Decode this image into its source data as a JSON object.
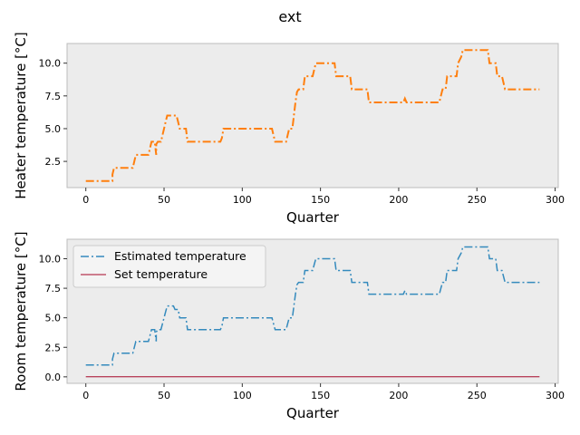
{
  "figure_title": "ext",
  "chart_data": [
    {
      "type": "line",
      "title": "",
      "xlabel": "Quarter",
      "ylabel": "Heater temperature [°C]",
      "xlim": [
        -12,
        302
      ],
      "ylim": [
        0.5,
        11.5
      ],
      "xticks": [
        0,
        50,
        100,
        150,
        200,
        250,
        300
      ],
      "xtick_labels": [
        "0",
        "50",
        "100",
        "150",
        "200",
        "250",
        "300"
      ],
      "yticks": [
        2.5,
        5.0,
        7.5,
        10.0
      ],
      "ytick_labels": [
        "2.5",
        "5.0",
        "7.5",
        "10.0"
      ],
      "grid": false,
      "background": "#ececec",
      "series": [
        {
          "name": "Heater temperature",
          "color": "#ff7f0e",
          "style": "dashdot",
          "points": [
            [
              0,
              1
            ],
            [
              17,
              1
            ],
            [
              17,
              1.5
            ],
            [
              18,
              2
            ],
            [
              30,
              2
            ],
            [
              31,
              2.5
            ],
            [
              32,
              3
            ],
            [
              40,
              3
            ],
            [
              41,
              3.5
            ],
            [
              42,
              4
            ],
            [
              44,
              4
            ],
            [
              45,
              3
            ],
            [
              45,
              3.8
            ],
            [
              46,
              4
            ],
            [
              48,
              4
            ],
            [
              49,
              4.5
            ],
            [
              50,
              5
            ],
            [
              51,
              5.5
            ],
            [
              52,
              6
            ],
            [
              58,
              6
            ],
            [
              59,
              5.5
            ],
            [
              60,
              5
            ],
            [
              64,
              5
            ],
            [
              65,
              4
            ],
            [
              86,
              4
            ],
            [
              87,
              4.3
            ],
            [
              88,
              5
            ],
            [
              119,
              5
            ],
            [
              120,
              4.5
            ],
            [
              121,
              4
            ],
            [
              128,
              4
            ],
            [
              129,
              4.5
            ],
            [
              130,
              5
            ],
            [
              132,
              5
            ],
            [
              133,
              6
            ],
            [
              134,
              7
            ],
            [
              135,
              7.8
            ],
            [
              136,
              8
            ],
            [
              139,
              8
            ],
            [
              140,
              9
            ],
            [
              145,
              9
            ],
            [
              146,
              9.5
            ],
            [
              147,
              10
            ],
            [
              159,
              10
            ],
            [
              160,
              9
            ],
            [
              169,
              9
            ],
            [
              170,
              8
            ],
            [
              176,
              8
            ],
            [
              177,
              8
            ],
            [
              180,
              8
            ],
            [
              181,
              7
            ],
            [
              203,
              7
            ],
            [
              204,
              7.3
            ],
            [
              205,
              7
            ],
            [
              226,
              7
            ],
            [
              227,
              7.5
            ],
            [
              228,
              8
            ],
            [
              230,
              8
            ],
            [
              231,
              9
            ],
            [
              237,
              9
            ],
            [
              238,
              10
            ],
            [
              240,
              10.5
            ],
            [
              241,
              11
            ],
            [
              257,
              11
            ],
            [
              258,
              10
            ],
            [
              262,
              10
            ],
            [
              263,
              9
            ],
            [
              266,
              9
            ],
            [
              267,
              8.5
            ],
            [
              268,
              8
            ],
            [
              290,
              8
            ]
          ]
        }
      ]
    },
    {
      "type": "line",
      "title": "",
      "xlabel": "Quarter",
      "ylabel": "Room temperature [°C]",
      "xlim": [
        -12,
        302
      ],
      "ylim": [
        -0.55,
        11.65
      ],
      "xticks": [
        0,
        50,
        100,
        150,
        200,
        250,
        300
      ],
      "xtick_labels": [
        "0",
        "50",
        "100",
        "150",
        "200",
        "250",
        "300"
      ],
      "yticks": [
        0.0,
        2.5,
        5.0,
        7.5,
        10.0
      ],
      "ytick_labels": [
        "0.0",
        "2.5",
        "5.0",
        "7.5",
        "10.0"
      ],
      "grid": false,
      "background": "#ececec",
      "legend_position": "top-left",
      "series": [
        {
          "name": "Estimated temperature",
          "color": "#348abd",
          "style": "dashdot",
          "points": [
            [
              0,
              1
            ],
            [
              17,
              1
            ],
            [
              17,
              1.5
            ],
            [
              18,
              2
            ],
            [
              30,
              2
            ],
            [
              31,
              2.5
            ],
            [
              32,
              3
            ],
            [
              40,
              3
            ],
            [
              41,
              3.5
            ],
            [
              42,
              4
            ],
            [
              44,
              4
            ],
            [
              45,
              3
            ],
            [
              45,
              3.8
            ],
            [
              46,
              4
            ],
            [
              48,
              4
            ],
            [
              49,
              4.5
            ],
            [
              50,
              5
            ],
            [
              51,
              5.5
            ],
            [
              52,
              6
            ],
            [
              56,
              6
            ],
            [
              57,
              5.7
            ],
            [
              59,
              5.7
            ],
            [
              60,
              5
            ],
            [
              64,
              5
            ],
            [
              65,
              4
            ],
            [
              86,
              4
            ],
            [
              87,
              4.3
            ],
            [
              88,
              5
            ],
            [
              119,
              5
            ],
            [
              120,
              4.5
            ],
            [
              121,
              4
            ],
            [
              128,
              4
            ],
            [
              129,
              4.5
            ],
            [
              130,
              5
            ],
            [
              132,
              5
            ],
            [
              133,
              6
            ],
            [
              134,
              7
            ],
            [
              135,
              7.8
            ],
            [
              136,
              8
            ],
            [
              139,
              8
            ],
            [
              140,
              9
            ],
            [
              145,
              9
            ],
            [
              146,
              9.5
            ],
            [
              147,
              10
            ],
            [
              159,
              10
            ],
            [
              160,
              9
            ],
            [
              169,
              9
            ],
            [
              170,
              8
            ],
            [
              180,
              8
            ],
            [
              181,
              7
            ],
            [
              203,
              7
            ],
            [
              204,
              7.3
            ],
            [
              205,
              7
            ],
            [
              226,
              7
            ],
            [
              227,
              7.5
            ],
            [
              228,
              8
            ],
            [
              230,
              8
            ],
            [
              231,
              9
            ],
            [
              237,
              9
            ],
            [
              238,
              10
            ],
            [
              240,
              10.5
            ],
            [
              241,
              11
            ],
            [
              257,
              11
            ],
            [
              258,
              10
            ],
            [
              262,
              10
            ],
            [
              263,
              9
            ],
            [
              266,
              9
            ],
            [
              267,
              8.5
            ],
            [
              268,
              8
            ],
            [
              290,
              8
            ]
          ]
        },
        {
          "name": "Set temperature",
          "color": "#a60628",
          "style": "solid",
          "points": [
            [
              0,
              0
            ],
            [
              290,
              0
            ]
          ]
        }
      ]
    }
  ]
}
